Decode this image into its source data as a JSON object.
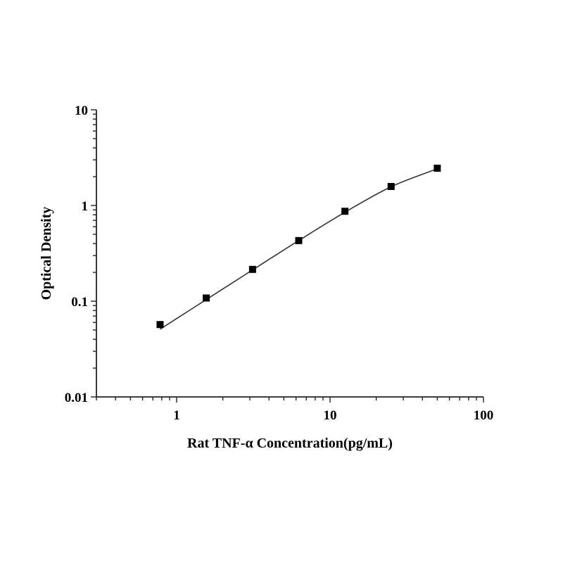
{
  "chart_data": {
    "type": "scatter",
    "title": "",
    "xlabel": "Rat TNF-α Concentration(pg/mL)",
    "ylabel": "Optical Density",
    "x_scale": "log",
    "y_scale": "log",
    "xlim": [
      0.3,
      100
    ],
    "ylim": [
      0.01,
      10
    ],
    "x_ticks": [
      {
        "value": 1,
        "label": "1"
      },
      {
        "value": 10,
        "label": "10"
      },
      {
        "value": 100,
        "label": "100"
      }
    ],
    "y_ticks": [
      {
        "value": 0.01,
        "label": "0.01"
      },
      {
        "value": 0.1,
        "label": "0.1"
      },
      {
        "value": 1,
        "label": "1"
      },
      {
        "value": 10,
        "label": "10"
      }
    ],
    "grid": false,
    "marker": "square",
    "color": "#000000",
    "line_color": "#333333",
    "points": [
      {
        "x": 0.78,
        "y": 0.057
      },
      {
        "x": 1.56,
        "y": 0.108
      },
      {
        "x": 3.125,
        "y": 0.215
      },
      {
        "x": 6.25,
        "y": 0.43
      },
      {
        "x": 12.5,
        "y": 0.87
      },
      {
        "x": 25,
        "y": 1.58
      },
      {
        "x": 50,
        "y": 2.45
      }
    ],
    "fit_curve": [
      {
        "x": 0.78,
        "y": 0.051
      },
      {
        "x": 1.56,
        "y": 0.104
      },
      {
        "x": 3.125,
        "y": 0.212
      },
      {
        "x": 6.25,
        "y": 0.43
      },
      {
        "x": 12.5,
        "y": 0.85
      },
      {
        "x": 25,
        "y": 1.57
      },
      {
        "x": 50,
        "y": 2.42
      }
    ]
  }
}
